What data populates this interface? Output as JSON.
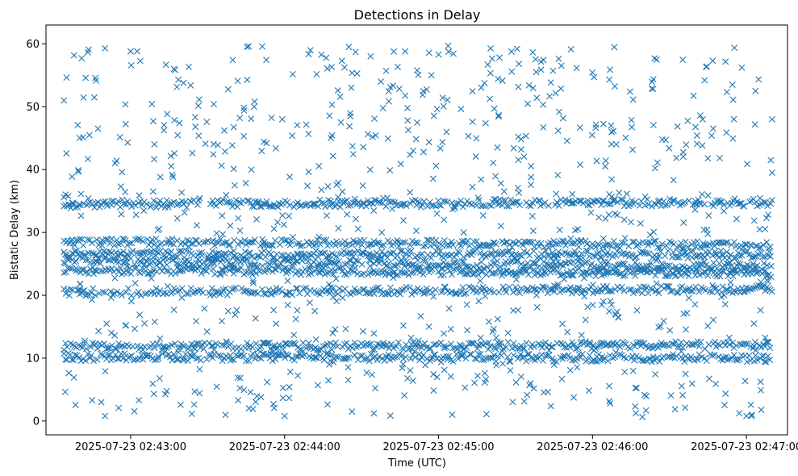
{
  "chart_data": {
    "type": "scatter",
    "title": "Detections in Delay",
    "xlabel": "Time (UTC)",
    "ylabel": "Bistatic Delay (km)",
    "marker": "x",
    "color": "#1f77b4",
    "xlim": [
      "2025-07-23 02:42:27",
      "2025-07-23 02:47:16"
    ],
    "ylim": [
      -2.2,
      63
    ],
    "x_ticks": [
      "2025-07-23 02:43:00",
      "2025-07-23 02:44:00",
      "2025-07-23 02:45:00",
      "2025-07-23 02:46:00",
      "2025-07-23 02:47:00"
    ],
    "y_ticks": [
      0,
      10,
      20,
      30,
      40,
      50,
      60
    ],
    "x_range": [
      "2025-07-23 02:42:34",
      "2025-07-23 02:47:10"
    ],
    "tracks": [
      {
        "y_start": 11.8,
        "y_end": 12.1
      },
      {
        "y_start": 10.2,
        "y_end": 10.0
      },
      {
        "y_start": 25.5,
        "y_end": 24.5
      },
      {
        "y_start": 24.0,
        "y_end": 23.5
      },
      {
        "y_start": 26.5,
        "y_end": 26.5
      },
      {
        "y_start": 34.5,
        "y_end": 34.8
      },
      {
        "y_start": 20.5,
        "y_end": 21.0
      },
      {
        "y_start": 28.5,
        "y_end": 28.0
      }
    ],
    "sample_points": [
      {
        "x": "2025-07-23 02:42:34",
        "y": 51.0
      },
      {
        "x": "2025-07-23 02:42:34",
        "y": 35.6
      },
      {
        "x": "2025-07-23 02:42:50",
        "y": 59.3
      },
      {
        "x": "2025-07-23 02:42:50",
        "y": 0.8
      },
      {
        "x": "2025-07-23 02:43:00",
        "y": 58.8
      },
      {
        "x": "2025-07-23 02:44:00",
        "y": 0.8
      },
      {
        "x": "2025-07-23 02:44:25",
        "y": 59.5
      },
      {
        "x": "2025-07-23 02:45:00",
        "y": 58.3
      },
      {
        "x": "2025-07-23 02:46:25",
        "y": 57.5
      },
      {
        "x": "2025-07-23 02:47:00",
        "y": 0.8
      },
      {
        "x": "2025-07-23 02:47:10",
        "y": 48.0
      },
      {
        "x": "2025-07-23 02:47:10",
        "y": 39.5
      }
    ],
    "grid": false,
    "legend": "none"
  }
}
